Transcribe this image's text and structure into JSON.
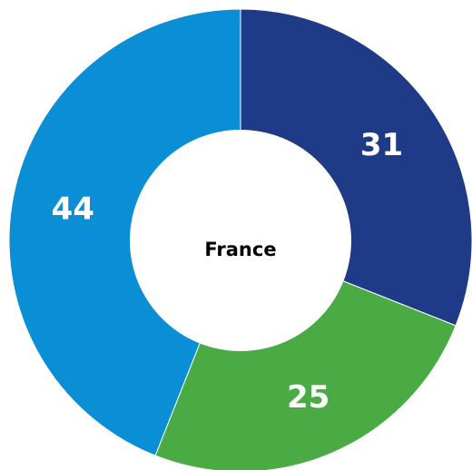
{
  "chart_data": {
    "type": "pie",
    "center_label": "France",
    "values": [
      31,
      25,
      44
    ],
    "colors": [
      "#1f3a87",
      "#4aab45",
      "#0a8fd6"
    ]
  }
}
